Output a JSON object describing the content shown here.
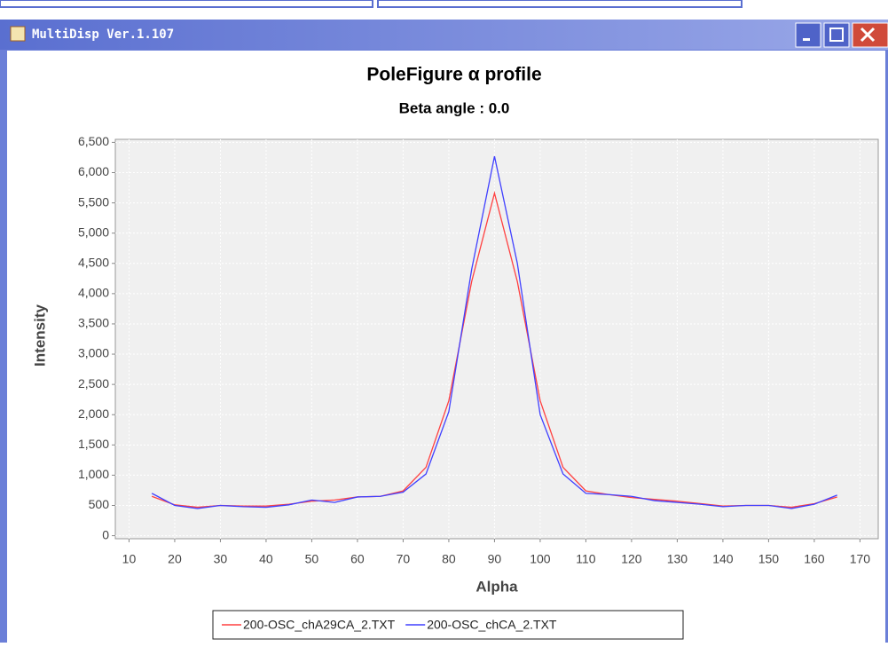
{
  "window": {
    "title": "MultiDisp Ver.1.107"
  },
  "chart_data": {
    "type": "line",
    "title": "PoleFigure α profile",
    "subtitle": "Beta angle : 0.0",
    "x_label": "Alpha",
    "y_label": "Intensity",
    "x": [
      15,
      20,
      25,
      30,
      35,
      40,
      45,
      50,
      55,
      60,
      65,
      70,
      75,
      80,
      85,
      90,
      95,
      100,
      105,
      110,
      115,
      120,
      125,
      130,
      135,
      140,
      145,
      150,
      155,
      160,
      165
    ],
    "series": [
      {
        "name": "200-OSC_chA29CA_2.TXT",
        "color": "#ff4040",
        "values": [
          650,
          510,
          470,
          500,
          490,
          490,
          520,
          570,
          590,
          640,
          650,
          740,
          1130,
          2230,
          4200,
          5660,
          4200,
          2230,
          1130,
          740,
          680,
          630,
          600,
          570,
          530,
          490,
          500,
          500,
          470,
          530,
          640
        ]
      },
      {
        "name": "200-OSC_chCA_2.TXT",
        "color": "#4040ff",
        "values": [
          700,
          500,
          450,
          500,
          480,
          470,
          510,
          590,
          550,
          640,
          650,
          720,
          1020,
          2050,
          4400,
          6270,
          4500,
          2000,
          1020,
          700,
          680,
          650,
          580,
          550,
          520,
          480,
          500,
          500,
          450,
          520,
          670
        ]
      }
    ],
    "xlim": [
      7,
      174
    ],
    "xticks": [
      10,
      20,
      30,
      40,
      50,
      60,
      70,
      80,
      90,
      100,
      110,
      120,
      130,
      140,
      150,
      160,
      170
    ],
    "ylim": [
      -50,
      6550
    ],
    "yticks": [
      0,
      500,
      {
        "value": 1000,
        "label": "1,000"
      },
      {
        "value": 1500,
        "label": "1,500"
      },
      {
        "value": 2000,
        "label": "2,000"
      },
      {
        "value": 2500,
        "label": "2,500"
      },
      {
        "value": 3000,
        "label": "3,000"
      },
      {
        "value": 3500,
        "label": "3,500"
      },
      {
        "value": 4000,
        "label": "4,000"
      },
      {
        "value": 4500,
        "label": "4,500"
      },
      {
        "value": 5000,
        "label": "5,000"
      },
      {
        "value": 5500,
        "label": "5,500"
      },
      {
        "value": 6000,
        "label": "6,000"
      },
      {
        "value": 6500,
        "label": "6,500"
      }
    ],
    "grid": true,
    "legend": "bottom"
  }
}
